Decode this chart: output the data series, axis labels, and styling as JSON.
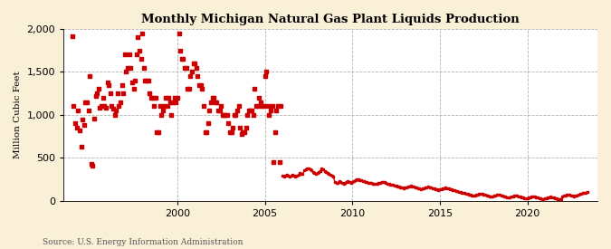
{
  "title": "Monthly Michigan Natural Gas Plant Liquids Production",
  "ylabel": "Million Cubic Feet",
  "source": "Source: U.S. Energy Information Administration",
  "background_color": "#faefd7",
  "plot_bg_color": "#ffffff",
  "marker_color": "#cc0000",
  "line_color": "#cc0000",
  "xlim_start": 1993.5,
  "xlim_end": 2024.0,
  "ylim": [
    0,
    2000
  ],
  "yticks": [
    0,
    500,
    1000,
    1500,
    2000
  ],
  "xticks": [
    2000,
    2005,
    2010,
    2015,
    2020
  ],
  "scatter_end_year": 2006.0,
  "scatter_dates": [
    1994.0,
    1994.25,
    1994.5,
    1994.75,
    1995.0,
    1995.25,
    1995.5,
    1995.75,
    1996.0,
    1996.25,
    1996.5,
    1996.75,
    1997.0,
    1997.25,
    1997.5,
    1997.75,
    1998.0,
    1998.25,
    1998.5,
    1998.75,
    1999.0,
    1999.25,
    1999.5,
    1999.75,
    2000.0,
    2000.25,
    2000.5,
    2000.75,
    2001.0,
    2001.25,
    2001.5,
    2001.75,
    2002.0,
    2002.25,
    2002.5,
    2002.75,
    2003.0,
    2003.25,
    2003.5,
    2003.75,
    2004.0,
    2004.25,
    2004.5,
    2004.75,
    2005.0,
    2005.25,
    2005.5,
    2005.75,
    1994.083,
    1994.167,
    1994.333,
    1994.417,
    1994.583,
    1994.667,
    1994.833,
    1994.917,
    1995.083,
    1995.167,
    1995.333,
    1995.417,
    1995.583,
    1995.667,
    1995.833,
    1995.917,
    1996.083,
    1996.167,
    1996.333,
    1996.417,
    1996.583,
    1996.667,
    1996.833,
    1996.917,
    1997.083,
    1997.167,
    1997.333,
    1997.417,
    1997.583,
    1997.667,
    1997.833,
    1997.917,
    1998.083,
    1998.167,
    1998.333,
    1998.417,
    1998.583,
    1998.667,
    1998.833,
    1998.917,
    1999.083,
    1999.167,
    1999.333,
    1999.417,
    1999.583,
    1999.667,
    1999.833,
    1999.917,
    2000.083,
    2000.167,
    2000.333,
    2000.417,
    2000.583,
    2000.667,
    2000.833,
    2000.917,
    2001.083,
    2001.167,
    2001.333,
    2001.417,
    2001.583,
    2001.667,
    2001.833,
    2001.917,
    2002.083,
    2002.167,
    2002.333,
    2002.417,
    2002.583,
    2002.667,
    2002.833,
    2002.917,
    2003.083,
    2003.167,
    2003.333,
    2003.417,
    2003.583,
    2003.667,
    2003.833,
    2003.917,
    2004.083,
    2004.167,
    2004.333,
    2004.417,
    2004.583,
    2004.667,
    2004.833,
    2004.917,
    2005.083,
    2005.167,
    2005.333,
    2005.417,
    2005.583,
    2005.667,
    2005.833,
    2005.917
  ],
  "scatter_values": [
    1920,
    850,
    630,
    1150,
    1450,
    960,
    1300,
    1200,
    1380,
    1100,
    1050,
    1150,
    1700,
    1700,
    1300,
    1900,
    1950,
    1400,
    1200,
    1200,
    1100,
    1100,
    1200,
    1150,
    1200,
    1650,
    1550,
    1450,
    1600,
    1350,
    1100,
    900,
    1200,
    1150,
    1100,
    1000,
    800,
    1000,
    1100,
    800,
    1000,
    1050,
    1100,
    1150,
    1450,
    1000,
    450,
    1100,
    1100,
    900,
    1050,
    820,
    950,
    880,
    1150,
    1050,
    430,
    410,
    1220,
    1250,
    1080,
    1100,
    1100,
    1080,
    1350,
    1250,
    1070,
    1000,
    1250,
    1100,
    1350,
    1250,
    1500,
    1550,
    1550,
    1380,
    1400,
    1700,
    1750,
    1650,
    1550,
    1400,
    1400,
    1250,
    1200,
    1100,
    800,
    800,
    1000,
    1050,
    1200,
    1100,
    1150,
    1000,
    1200,
    1150,
    1950,
    1750,
    1650,
    1550,
    1300,
    1300,
    1500,
    1600,
    1550,
    1450,
    1350,
    1300,
    800,
    800,
    1050,
    1150,
    1200,
    1150,
    1050,
    1050,
    1000,
    1000,
    1000,
    900,
    800,
    850,
    1000,
    1050,
    850,
    780,
    800,
    850,
    1050,
    1050,
    1000,
    1300,
    1100,
    1200,
    1100,
    1100,
    1500,
    1100,
    1050,
    1100,
    800,
    1050,
    450,
    1100
  ],
  "line_dates": [
    2006.0,
    2006.083,
    2006.167,
    2006.25,
    2006.333,
    2006.417,
    2006.5,
    2006.583,
    2006.667,
    2006.75,
    2006.833,
    2006.917,
    2007.0,
    2007.083,
    2007.167,
    2007.25,
    2007.333,
    2007.417,
    2007.5,
    2007.583,
    2007.667,
    2007.75,
    2007.833,
    2007.917,
    2008.0,
    2008.083,
    2008.167,
    2008.25,
    2008.333,
    2008.417,
    2008.5,
    2008.583,
    2008.667,
    2008.75,
    2008.833,
    2008.917,
    2009.0,
    2009.083,
    2009.167,
    2009.25,
    2009.333,
    2009.417,
    2009.5,
    2009.583,
    2009.667,
    2009.75,
    2009.833,
    2009.917,
    2010.0,
    2010.083,
    2010.167,
    2010.25,
    2010.333,
    2010.417,
    2010.5,
    2010.583,
    2010.667,
    2010.75,
    2010.833,
    2010.917,
    2011.0,
    2011.083,
    2011.167,
    2011.25,
    2011.333,
    2011.417,
    2011.5,
    2011.583,
    2011.667,
    2011.75,
    2011.833,
    2011.917,
    2012.0,
    2012.083,
    2012.167,
    2012.25,
    2012.333,
    2012.417,
    2012.5,
    2012.583,
    2012.667,
    2012.75,
    2012.833,
    2012.917,
    2013.0,
    2013.083,
    2013.167,
    2013.25,
    2013.333,
    2013.417,
    2013.5,
    2013.583,
    2013.667,
    2013.75,
    2013.833,
    2013.917,
    2014.0,
    2014.083,
    2014.167,
    2014.25,
    2014.333,
    2014.417,
    2014.5,
    2014.583,
    2014.667,
    2014.75,
    2014.833,
    2014.917,
    2015.0,
    2015.083,
    2015.167,
    2015.25,
    2015.333,
    2015.417,
    2015.5,
    2015.583,
    2015.667,
    2015.75,
    2015.833,
    2015.917,
    2016.0,
    2016.083,
    2016.167,
    2016.25,
    2016.333,
    2016.417,
    2016.5,
    2016.583,
    2016.667,
    2016.75,
    2016.833,
    2016.917,
    2017.0,
    2017.083,
    2017.167,
    2017.25,
    2017.333,
    2017.417,
    2017.5,
    2017.583,
    2017.667,
    2017.75,
    2017.833,
    2017.917,
    2018.0,
    2018.083,
    2018.167,
    2018.25,
    2018.333,
    2018.417,
    2018.5,
    2018.583,
    2018.667,
    2018.75,
    2018.833,
    2018.917,
    2019.0,
    2019.083,
    2019.167,
    2019.25,
    2019.333,
    2019.417,
    2019.5,
    2019.583,
    2019.667,
    2019.75,
    2019.833,
    2019.917,
    2020.0,
    2020.083,
    2020.167,
    2020.25,
    2020.333,
    2020.417,
    2020.5,
    2020.583,
    2020.667,
    2020.75,
    2020.833,
    2020.917,
    2021.0,
    2021.083,
    2021.167,
    2021.25,
    2021.333,
    2021.417,
    2021.5,
    2021.583,
    2021.667,
    2021.75,
    2021.833,
    2021.917,
    2022.0,
    2022.083,
    2022.167,
    2022.25,
    2022.333,
    2022.417,
    2022.5,
    2022.583,
    2022.667,
    2022.75,
    2022.833,
    2022.917,
    2023.0,
    2023.083,
    2023.167,
    2023.25,
    2023.333,
    2023.417
  ],
  "line_values": [
    290,
    285,
    295,
    305,
    295,
    285,
    290,
    300,
    295,
    285,
    290,
    300,
    320,
    315,
    310,
    355,
    365,
    375,
    380,
    365,
    355,
    335,
    325,
    315,
    325,
    335,
    350,
    375,
    365,
    345,
    335,
    320,
    315,
    305,
    295,
    285,
    215,
    205,
    210,
    225,
    218,
    205,
    198,
    212,
    222,
    232,
    222,
    212,
    222,
    232,
    242,
    252,
    248,
    242,
    238,
    232,
    228,
    222,
    218,
    212,
    212,
    207,
    202,
    202,
    197,
    202,
    207,
    212,
    217,
    222,
    218,
    212,
    202,
    197,
    192,
    187,
    182,
    177,
    172,
    167,
    162,
    157,
    152,
    147,
    152,
    157,
    162,
    167,
    172,
    167,
    162,
    157,
    152,
    147,
    142,
    137,
    142,
    147,
    152,
    157,
    162,
    157,
    152,
    147,
    142,
    137,
    132,
    127,
    132,
    137,
    142,
    147,
    152,
    147,
    142,
    137,
    132,
    127,
    122,
    117,
    112,
    107,
    102,
    97,
    92,
    87,
    82,
    77,
    72,
    67,
    62,
    57,
    62,
    67,
    72,
    77,
    82,
    77,
    72,
    67,
    62,
    57,
    52,
    47,
    52,
    57,
    62,
    67,
    72,
    67,
    62,
    57,
    52,
    47,
    42,
    37,
    42,
    47,
    52,
    57,
    62,
    57,
    52,
    47,
    42,
    37,
    32,
    32,
    32,
    37,
    42,
    47,
    52,
    47,
    42,
    37,
    32,
    27,
    22,
    22,
    27,
    32,
    37,
    42,
    47,
    42,
    37,
    32,
    27,
    22,
    17,
    22,
    52,
    57,
    62,
    67,
    72,
    67,
    62,
    57,
    52,
    57,
    62,
    72,
    77,
    82,
    87,
    92,
    97,
    102
  ]
}
